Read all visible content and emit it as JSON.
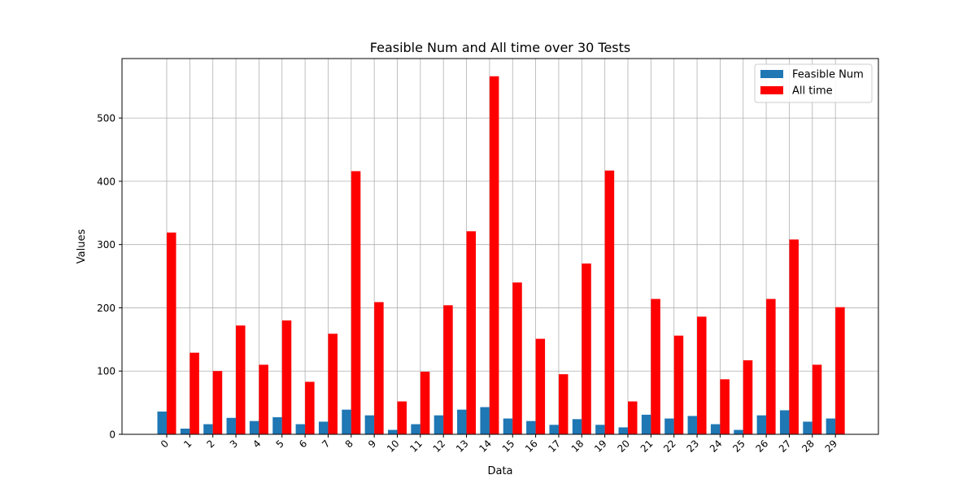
{
  "chart_data": {
    "type": "bar",
    "title": "Feasible Num and All time over 30 Tests",
    "xlabel": "Data",
    "ylabel": "Values",
    "categories": [
      "0",
      "1",
      "2",
      "3",
      "4",
      "5",
      "6",
      "7",
      "8",
      "9",
      "10",
      "11",
      "12",
      "13",
      "14",
      "15",
      "16",
      "17",
      "18",
      "19",
      "20",
      "21",
      "22",
      "23",
      "24",
      "25",
      "26",
      "27",
      "28",
      "29"
    ],
    "series": [
      {
        "name": "Feasible Num",
        "color": "#1f77b4",
        "values": [
          36,
          9,
          16,
          26,
          21,
          27,
          16,
          20,
          39,
          30,
          7,
          16,
          30,
          39,
          43,
          25,
          21,
          15,
          24,
          15,
          11,
          31,
          25,
          29,
          16,
          7,
          30,
          38,
          20,
          25
        ]
      },
      {
        "name": "All time",
        "color": "#ff0000",
        "values": [
          319,
          129,
          100,
          172,
          110,
          180,
          83,
          159,
          416,
          209,
          52,
          99,
          204,
          321,
          566,
          240,
          151,
          95,
          270,
          417,
          52,
          214,
          156,
          186,
          87,
          117,
          214,
          308,
          110,
          201
        ]
      }
    ],
    "ylim": [
      0,
      594
    ],
    "yticks": [
      0,
      100,
      200,
      300,
      400,
      500
    ],
    "grid": true,
    "legend_position": "top-right",
    "xtick_rotation": 45
  }
}
